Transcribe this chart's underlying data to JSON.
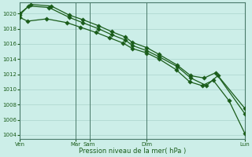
{
  "xlabel": "Pression niveau de la mer( hPa )",
  "ylim": [
    1003.5,
    1021.5
  ],
  "yticks": [
    1004,
    1006,
    1008,
    1010,
    1012,
    1014,
    1016,
    1018,
    1020
  ],
  "bg_color": "#cceee8",
  "grid_color": "#aad4cc",
  "line_color": "#1a5c1a",
  "xtick_labels": [
    "Ven",
    "Mar",
    "Sam",
    "Dim",
    "Lun"
  ],
  "xtick_positions": [
    0.0,
    0.25,
    0.31,
    0.565,
    1.0
  ],
  "vline_positions": [
    0.0,
    0.25,
    0.31,
    0.565,
    1.0
  ],
  "series1_x": [
    0.0,
    0.04,
    0.13,
    0.22,
    0.28,
    0.35,
    0.41,
    0.47,
    0.5,
    0.565,
    0.62,
    0.7,
    0.76,
    0.83,
    0.88,
    1.0
  ],
  "series1_y": [
    1019.8,
    1021.0,
    1020.8,
    1019.5,
    1018.8,
    1018.0,
    1017.2,
    1016.5,
    1015.8,
    1015.1,
    1014.3,
    1013.0,
    1011.5,
    1010.5,
    1011.8,
    1006.8
  ],
  "series2_x": [
    0.0,
    0.05,
    0.14,
    0.22,
    0.28,
    0.35,
    0.41,
    0.47,
    0.5,
    0.565,
    0.62,
    0.7,
    0.76,
    0.82,
    0.87,
    1.0
  ],
  "series2_y": [
    1020.0,
    1021.2,
    1021.0,
    1019.8,
    1019.2,
    1018.4,
    1017.6,
    1016.9,
    1016.2,
    1015.5,
    1014.6,
    1013.2,
    1011.8,
    1011.5,
    1012.2,
    1007.5
  ],
  "series3_x": [
    0.0,
    0.035,
    0.12,
    0.21,
    0.27,
    0.34,
    0.4,
    0.46,
    0.5,
    0.565,
    0.62,
    0.695,
    0.755,
    0.81,
    0.86,
    0.93,
    1.0
  ],
  "series3_y": [
    1019.5,
    1019.0,
    1019.3,
    1018.8,
    1018.2,
    1017.5,
    1016.8,
    1016.1,
    1015.4,
    1014.8,
    1014.0,
    1012.6,
    1011.0,
    1010.5,
    1011.2,
    1008.5,
    1004.2
  ]
}
